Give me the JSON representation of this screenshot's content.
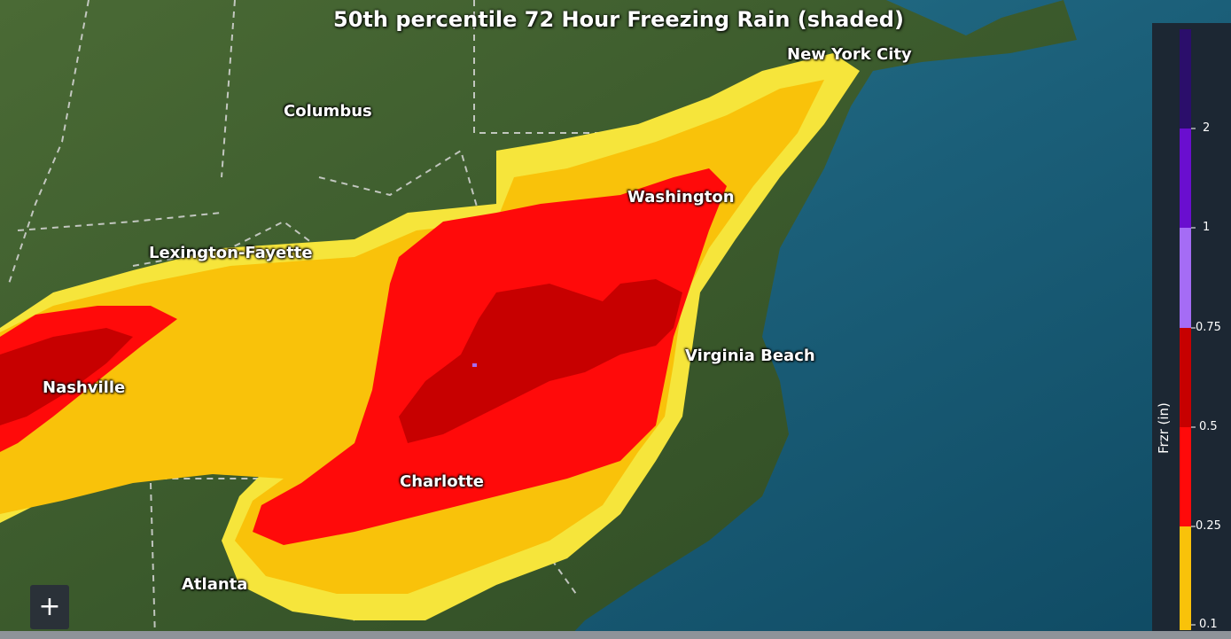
{
  "map": {
    "title": "50th percentile 72 Hour Freezing Rain (shaded)",
    "cities": {
      "new_york_city": "New York City",
      "columbus": "Columbus",
      "washington": "Washington",
      "lexington_fayette": "Lexington-Fayette",
      "virginia_beach": "Virginia Beach",
      "nashville": "Nashville",
      "charlotte": "Charlotte",
      "atlanta": "Atlanta"
    }
  },
  "legend": {
    "title": "Frzr (in)",
    "ticks": [
      "0.1",
      "0.25",
      "0.5",
      "0.75",
      "1",
      "2"
    ],
    "bands": [
      {
        "from": "0.1",
        "to": "0.25",
        "color": "#f9c20a"
      },
      {
        "from": "0.25",
        "to": "0.5",
        "color": "#ff0a0a"
      },
      {
        "from": "0.5",
        "to": "0.75",
        "color": "#c70000"
      },
      {
        "from": "0.75",
        "to": "1",
        "color": "#a56cf5"
      },
      {
        "from": "1",
        "to": "2",
        "color": "#6a0ecf"
      },
      {
        "from": "2",
        "to": "",
        "color": "#2b0e6b"
      }
    ]
  },
  "controls": {
    "zoom_in": "+"
  },
  "colors": {
    "ocean": "#1b5f79",
    "land": "#3f5d2b",
    "light_freezing_rain": "#f6e53b",
    "boundary": "#d8d8d8"
  }
}
